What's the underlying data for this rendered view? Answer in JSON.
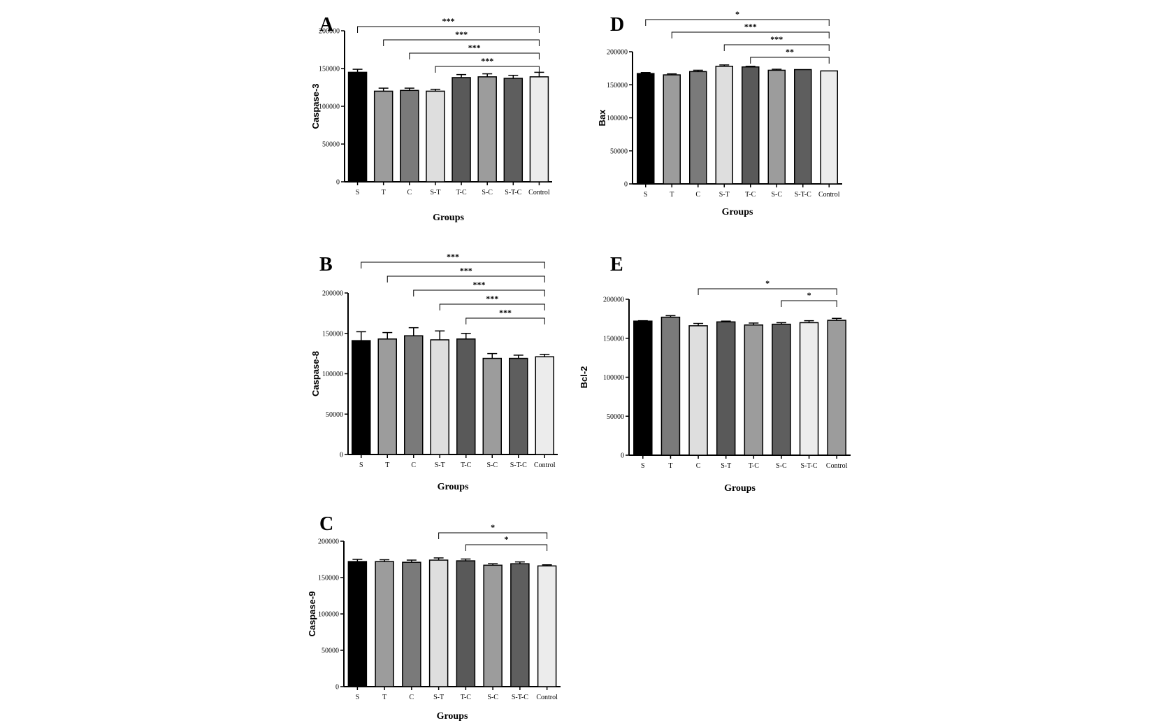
{
  "figure": {
    "background": "#ffffff"
  },
  "chart_data": [
    {
      "id": "A",
      "panel_label": "A",
      "type": "bar",
      "categories": [
        "S",
        "T",
        "C",
        "S-T",
        "T-C",
        "S-C",
        "S-T-C",
        "Control"
      ],
      "values": [
        145000,
        120000,
        121000,
        120000,
        138000,
        139000,
        137000,
        139000
      ],
      "errors": [
        4000,
        4000,
        3000,
        2500,
        4000,
        4000,
        4000,
        6000
      ],
      "bar_colors": [
        "#000000",
        "#9c9c9c",
        "#7a7a7a",
        "#dedede",
        "#595959",
        "#9c9c9c",
        "#5e5e5e",
        "#ececec"
      ],
      "ylim": [
        0,
        200000
      ],
      "yticks": [
        0,
        50000,
        100000,
        150000,
        200000
      ],
      "ytick_labels": [
        "0",
        "50000",
        "100000",
        "150000",
        "200000"
      ],
      "ylabel": "Caspase-3",
      "xlabel": "Groups",
      "significance": [
        {
          "from": "S",
          "to": "Control",
          "label": "***"
        },
        {
          "from": "T",
          "to": "Control",
          "label": "***"
        },
        {
          "from": "C",
          "to": "Control",
          "label": "***"
        },
        {
          "from": "S-T",
          "to": "Control",
          "label": "***"
        }
      ]
    },
    {
      "id": "B",
      "panel_label": "B",
      "type": "bar",
      "categories": [
        "S",
        "T",
        "C",
        "S-T",
        "T-C",
        "S-C",
        "S-T-C",
        "Control"
      ],
      "values": [
        141000,
        143000,
        147000,
        142000,
        143000,
        119000,
        119000,
        121000
      ],
      "errors": [
        11000,
        8000,
        10000,
        11000,
        7000,
        6000,
        4000,
        3000
      ],
      "bar_colors": [
        "#000000",
        "#9c9c9c",
        "#7a7a7a",
        "#dedede",
        "#595959",
        "#9c9c9c",
        "#5e5e5e",
        "#ececec"
      ],
      "ylim": [
        0,
        200000
      ],
      "yticks": [
        0,
        50000,
        100000,
        150000,
        200000
      ],
      "ytick_labels": [
        "0",
        "50000",
        "100000",
        "150000",
        "200000"
      ],
      "ylabel": "Caspase-8",
      "xlabel": "Groups",
      "significance": [
        {
          "from": "S",
          "to": "Control",
          "label": "***"
        },
        {
          "from": "T",
          "to": "Control",
          "label": "***"
        },
        {
          "from": "C",
          "to": "Control",
          "label": "***"
        },
        {
          "from": "S-T",
          "to": "Control",
          "label": "***"
        },
        {
          "from": "T-C",
          "to": "Control",
          "label": "***"
        }
      ]
    },
    {
      "id": "C",
      "panel_label": "C",
      "type": "bar",
      "categories": [
        "S",
        "T",
        "C",
        "S-T",
        "T-C",
        "S-C",
        "S-T-C",
        "Control"
      ],
      "values": [
        172000,
        172000,
        171000,
        174000,
        173000,
        167000,
        169000,
        166000
      ],
      "errors": [
        3000,
        2500,
        3000,
        3000,
        2500,
        2000,
        2500,
        1500
      ],
      "bar_colors": [
        "#000000",
        "#9c9c9c",
        "#7a7a7a",
        "#dedede",
        "#595959",
        "#9c9c9c",
        "#5e5e5e",
        "#ececec"
      ],
      "ylim": [
        0,
        200000
      ],
      "yticks": [
        0,
        50000,
        100000,
        150000,
        200000
      ],
      "ytick_labels": [
        "0",
        "50000",
        "100000",
        "150000",
        "200000"
      ],
      "ylabel": "Caspase-9",
      "xlabel": "Groups",
      "significance": [
        {
          "from": "S-T",
          "to": "Control",
          "label": "*"
        },
        {
          "from": "T-C",
          "to": "Control",
          "label": "*"
        }
      ]
    },
    {
      "id": "D",
      "panel_label": "D",
      "type": "bar",
      "categories": [
        "S",
        "T",
        "C",
        "S-T",
        "T-C",
        "S-C",
        "S-T-C",
        "Control"
      ],
      "values": [
        167000,
        165000,
        170000,
        178000,
        177000,
        172000,
        173000,
        171000
      ],
      "errors": [
        1500,
        1500,
        2000,
        2000,
        1000,
        1500,
        0,
        0
      ],
      "bar_colors": [
        "#000000",
        "#9c9c9c",
        "#7a7a7a",
        "#dedede",
        "#595959",
        "#9c9c9c",
        "#5e5e5e",
        "#ececec"
      ],
      "ylim": [
        0,
        200000
      ],
      "yticks": [
        0,
        50000,
        100000,
        150000,
        200000
      ],
      "ytick_labels": [
        "0",
        "50000",
        "100000",
        "150000",
        "200000"
      ],
      "ylabel": "Bax",
      "xlabel": "Groups",
      "significance": [
        {
          "from": "S",
          "to": "Control",
          "label": "*"
        },
        {
          "from": "T",
          "to": "Control",
          "label": "***"
        },
        {
          "from": "S-T",
          "to": "Control",
          "label": "***"
        },
        {
          "from": "T-C",
          "to": "Control",
          "label": "**"
        }
      ]
    },
    {
      "id": "E",
      "panel_label": "E",
      "type": "bar",
      "categories": [
        "S",
        "T",
        "C",
        "S-T",
        "T-C",
        "S-C",
        "S-T-C",
        "Control"
      ],
      "values": [
        172000,
        177000,
        166000,
        171000,
        167000,
        168000,
        170000,
        173000
      ],
      "errors": [
        500,
        2000,
        3000,
        1000,
        2500,
        2000,
        2500,
        2500
      ],
      "bar_colors": [
        "#000000",
        "#7a7a7a",
        "#dedede",
        "#595959",
        "#9c9c9c",
        "#5e5e5e",
        "#ececec",
        "#9c9c9c"
      ],
      "ylim": [
        0,
        200000
      ],
      "yticks": [
        0,
        50000,
        100000,
        150000,
        200000
      ],
      "ytick_labels": [
        "0",
        "50000",
        "100000",
        "150000",
        "200000"
      ],
      "ylabel": "Bcl-2",
      "xlabel": "Groups",
      "significance": [
        {
          "from": "C",
          "to": "Control",
          "label": "*"
        },
        {
          "from": "S-C",
          "to": "Control",
          "label": "*"
        }
      ]
    }
  ]
}
